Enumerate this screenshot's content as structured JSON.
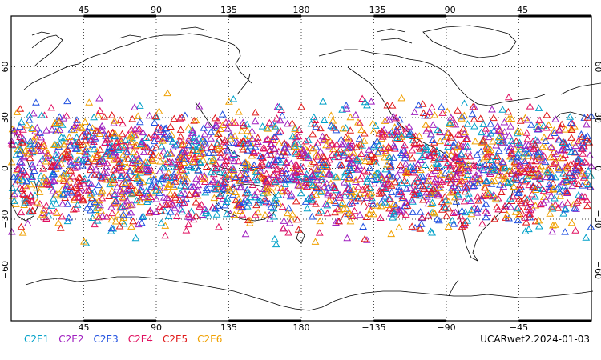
{
  "chart_data": {
    "type": "scatter",
    "projection": "equirectangular",
    "center_longitude": 180,
    "lon_range": [
      0,
      360
    ],
    "lat_range": [
      -90,
      90
    ],
    "marker": "triangle-outline",
    "grid": "dotted",
    "top_tick_labels": [
      "45",
      "90",
      "135",
      "180",
      "−135",
      "−90",
      "−45"
    ],
    "bottom_tick_labels": [
      "45",
      "90",
      "135",
      "180",
      "−135",
      "−90",
      "−45"
    ],
    "left_tick_labels": [
      "60",
      "30",
      "0",
      "−30",
      "−60"
    ],
    "right_tick_labels": [
      "60",
      "30",
      "0",
      "−30",
      "−60"
    ],
    "observation_lat_range": [
      -45,
      45
    ],
    "series": [
      {
        "name": "C2E1",
        "color": "#00a0c8"
      },
      {
        "name": "C2E2",
        "color": "#a020c0"
      },
      {
        "name": "C2E3",
        "color": "#2050e0"
      },
      {
        "name": "C2E4",
        "color": "#e01060"
      },
      {
        "name": "C2E5",
        "color": "#e01818"
      },
      {
        "name": "C2E6",
        "color": "#f0a000"
      }
    ],
    "caption": "UCARwet2.2024-01-03"
  }
}
